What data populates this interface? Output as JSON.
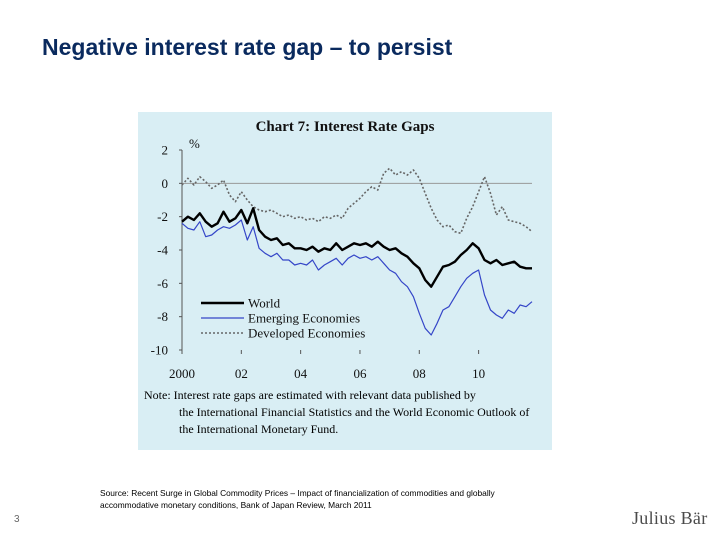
{
  "slide": {
    "title": "Negative interest rate gap – to persist",
    "source": "Source: Recent Surge in Global Commodity Prices – Impact of financialization of commodities and globally accommodative monetary conditions, Bank of Japan Review, March 2011",
    "page_number": "3",
    "logo_text": "Julius Bär"
  },
  "chart_data": {
    "type": "line",
    "title": "Chart 7: Interest Rate Gaps",
    "ylabel": "%",
    "xlabel": "",
    "ylim": [
      -10,
      2
    ],
    "yticks": [
      2,
      0,
      -2,
      -4,
      -6,
      -8,
      -10
    ],
    "xlim": [
      2000,
      2011.8
    ],
    "xticks": [
      2000,
      2002,
      2004,
      2006,
      2008,
      2010
    ],
    "xtick_labels": [
      "2000",
      "02",
      "04",
      "06",
      "08",
      "10"
    ],
    "reference_line": 0,
    "legend_position": "bottom-left",
    "note_line1": "Note: Interest rate gaps are estimated with relevant data published by",
    "note_line2": "the International Financial Statistics and the World Economic Outlook of the International Monetary Fund.",
    "colors": {
      "world": "#000000",
      "emerging": "#3546c8",
      "developed": "#666666",
      "zero_line": "#999999",
      "background": "#d9eef4"
    },
    "series": [
      {
        "name": "World",
        "style": "solid-thick",
        "x": [
          2000,
          2000.2,
          2000.4,
          2000.6,
          2000.8,
          2001,
          2001.2,
          2001.4,
          2001.6,
          2001.8,
          2002,
          2002.2,
          2002.4,
          2002.6,
          2002.8,
          2003,
          2003.2,
          2003.4,
          2003.6,
          2003.8,
          2004,
          2004.2,
          2004.4,
          2004.6,
          2004.8,
          2005,
          2005.2,
          2005.4,
          2005.6,
          2005.8,
          2006,
          2006.2,
          2006.4,
          2006.6,
          2006.8,
          2007,
          2007.2,
          2007.4,
          2007.6,
          2007.8,
          2008,
          2008.2,
          2008.4,
          2008.6,
          2008.8,
          2009,
          2009.2,
          2009.4,
          2009.6,
          2009.8,
          2010,
          2010.2,
          2010.4,
          2010.6,
          2010.8,
          2011,
          2011.2,
          2011.4,
          2011.6,
          2011.8
        ],
        "values": [
          -2.3,
          -2.0,
          -2.2,
          -1.8,
          -2.3,
          -2.6,
          -2.4,
          -1.7,
          -2.3,
          -2.1,
          -1.6,
          -2.4,
          -1.5,
          -2.8,
          -3.2,
          -3.4,
          -3.3,
          -3.7,
          -3.6,
          -3.9,
          -3.9,
          -4.0,
          -3.8,
          -4.1,
          -3.9,
          -4.0,
          -3.6,
          -4.0,
          -3.8,
          -3.6,
          -3.7,
          -3.6,
          -3.8,
          -3.5,
          -3.8,
          -4.0,
          -3.9,
          -4.2,
          -4.4,
          -4.8,
          -5.1,
          -5.8,
          -6.2,
          -5.6,
          -5.0,
          -4.9,
          -4.7,
          -4.3,
          -4.0,
          -3.6,
          -3.9,
          -4.6,
          -4.8,
          -4.6,
          -4.9,
          -4.8,
          -4.7,
          -5.0,
          -5.1,
          -5.1
        ]
      },
      {
        "name": "Emerging Economies",
        "style": "solid-thin",
        "x": [
          2000,
          2000.2,
          2000.4,
          2000.6,
          2000.8,
          2001,
          2001.2,
          2001.4,
          2001.6,
          2001.8,
          2002,
          2002.2,
          2002.4,
          2002.6,
          2002.8,
          2003,
          2003.2,
          2003.4,
          2003.6,
          2003.8,
          2004,
          2004.2,
          2004.4,
          2004.6,
          2004.8,
          2005,
          2005.2,
          2005.4,
          2005.6,
          2005.8,
          2006,
          2006.2,
          2006.4,
          2006.6,
          2006.8,
          2007,
          2007.2,
          2007.4,
          2007.6,
          2007.8,
          2008,
          2008.2,
          2008.4,
          2008.6,
          2008.8,
          2009,
          2009.2,
          2009.4,
          2009.6,
          2009.8,
          2010,
          2010.2,
          2010.4,
          2010.6,
          2010.8,
          2011,
          2011.2,
          2011.4,
          2011.6,
          2011.8
        ],
        "values": [
          -2.4,
          -2.7,
          -2.8,
          -2.3,
          -3.2,
          -3.1,
          -2.8,
          -2.6,
          -2.7,
          -2.5,
          -2.2,
          -3.4,
          -2.6,
          -3.9,
          -4.2,
          -4.4,
          -4.2,
          -4.6,
          -4.6,
          -4.9,
          -4.8,
          -4.9,
          -4.6,
          -5.2,
          -4.9,
          -4.7,
          -4.5,
          -4.9,
          -4.5,
          -4.3,
          -4.5,
          -4.4,
          -4.6,
          -4.4,
          -4.8,
          -5.2,
          -5.4,
          -5.9,
          -6.2,
          -6.8,
          -7.8,
          -8.7,
          -9.1,
          -8.4,
          -7.6,
          -7.4,
          -6.8,
          -6.2,
          -5.7,
          -5.4,
          -5.2,
          -6.7,
          -7.6,
          -7.9,
          -8.1,
          -7.6,
          -7.8,
          -7.3,
          -7.4,
          -7.1
        ]
      },
      {
        "name": "Developed Economies",
        "style": "dotted",
        "x": [
          2000,
          2000.2,
          2000.4,
          2000.6,
          2000.8,
          2001,
          2001.2,
          2001.4,
          2001.6,
          2001.8,
          2002,
          2002.2,
          2002.4,
          2002.6,
          2002.8,
          2003,
          2003.2,
          2003.4,
          2003.6,
          2003.8,
          2004,
          2004.2,
          2004.4,
          2004.6,
          2004.8,
          2005,
          2005.2,
          2005.4,
          2005.6,
          2005.8,
          2006,
          2006.2,
          2006.4,
          2006.6,
          2006.8,
          2007,
          2007.2,
          2007.4,
          2007.6,
          2007.8,
          2008,
          2008.2,
          2008.4,
          2008.6,
          2008.8,
          2009,
          2009.2,
          2009.4,
          2009.6,
          2009.8,
          2010,
          2010.2,
          2010.4,
          2010.6,
          2010.8,
          2011,
          2011.2,
          2011.4,
          2011.6,
          2011.8
        ],
        "values": [
          -0.1,
          0.3,
          -0.1,
          0.4,
          0.1,
          -0.3,
          -0.1,
          0.2,
          -0.7,
          -1.1,
          -0.5,
          -1.0,
          -1.4,
          -1.6,
          -1.7,
          -1.6,
          -1.8,
          -2.0,
          -1.9,
          -2.1,
          -2.0,
          -2.2,
          -2.1,
          -2.3,
          -2.0,
          -2.1,
          -1.9,
          -2.1,
          -1.5,
          -1.2,
          -0.9,
          -0.5,
          -0.2,
          -0.4,
          0.6,
          0.9,
          0.5,
          0.7,
          0.5,
          0.8,
          0.3,
          -0.6,
          -1.5,
          -2.2,
          -2.6,
          -2.5,
          -2.9,
          -3.0,
          -2.1,
          -1.4,
          -0.5,
          0.4,
          -0.6,
          -1.9,
          -1.4,
          -2.2,
          -2.3,
          -2.4,
          -2.6,
          -2.9
        ]
      }
    ]
  }
}
